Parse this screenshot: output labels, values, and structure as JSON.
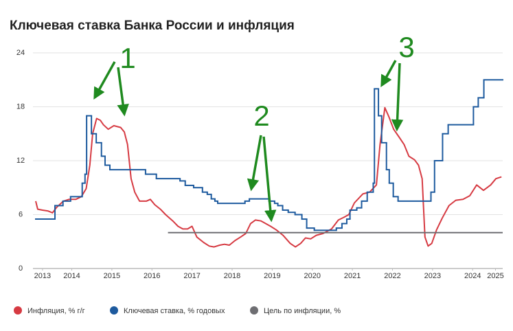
{
  "chart_data": {
    "type": "line",
    "title": "Ключевая ставка Банка России и инфляция",
    "xlim": [
      2013.55,
      2025.2
    ],
    "xticks": [
      {
        "value": 2013.72,
        "label": "2013"
      },
      {
        "value": 2014.45,
        "label": "2014"
      },
      {
        "value": 2015.45,
        "label": "2015"
      },
      {
        "value": 2016.45,
        "label": "2016"
      },
      {
        "value": 2017.45,
        "label": "2017"
      },
      {
        "value": 2018.45,
        "label": "2018"
      },
      {
        "value": 2019.45,
        "label": "2019"
      },
      {
        "value": 2020.45,
        "label": "2020"
      },
      {
        "value": 2021.45,
        "label": "2021"
      },
      {
        "value": 2022.45,
        "label": "2022"
      },
      {
        "value": 2023.45,
        "label": "2023"
      },
      {
        "value": 2024.45,
        "label": "2024"
      },
      {
        "value": 2025.02,
        "label": "2025"
      }
    ],
    "ylim": [
      0,
      24
    ],
    "yticks": [
      0,
      6,
      12,
      18,
      24
    ],
    "grid": true,
    "annotations": [
      "1",
      "2",
      "3"
    ],
    "series": [
      {
        "name": "Инфляция, % г/г",
        "color": "#d63a42",
        "x": [
          2013.55,
          2013.6,
          2013.72,
          2013.86,
          2013.97,
          2014.07,
          2014.24,
          2014.38,
          2014.55,
          2014.69,
          2014.81,
          2014.9,
          2014.97,
          2015.07,
          2015.16,
          2015.24,
          2015.36,
          2015.5,
          2015.67,
          2015.76,
          2015.84,
          2015.93,
          2016.02,
          2016.14,
          2016.31,
          2016.41,
          2016.52,
          2016.66,
          2016.79,
          2016.97,
          2017.1,
          2017.22,
          2017.34,
          2017.45,
          2017.57,
          2017.74,
          2017.88,
          2018.0,
          2018.14,
          2018.26,
          2018.38,
          2018.52,
          2018.66,
          2018.79,
          2018.91,
          2019.03,
          2019.17,
          2019.29,
          2019.41,
          2019.55,
          2019.72,
          2019.9,
          2020.03,
          2020.16,
          2020.28,
          2020.41,
          2020.55,
          2020.72,
          2020.93,
          2021.1,
          2021.24,
          2021.36,
          2021.5,
          2021.71,
          2021.88,
          2022.05,
          2022.14,
          2022.26,
          2022.36,
          2022.48,
          2022.62,
          2022.74,
          2022.86,
          2023.0,
          2023.1,
          2023.19,
          2023.26,
          2023.34,
          2023.43,
          2023.55,
          2023.69,
          2023.86,
          2024.03,
          2024.21,
          2024.38,
          2024.55,
          2024.72,
          2024.9,
          2025.03,
          2025.17
        ],
        "values": [
          7.5,
          6.6,
          6.5,
          6.4,
          6.2,
          6.8,
          7.5,
          7.7,
          7.7,
          8.0,
          8.9,
          11.5,
          15.0,
          16.7,
          16.5,
          16.0,
          15.5,
          15.9,
          15.7,
          15.2,
          13.8,
          10.0,
          8.5,
          7.5,
          7.5,
          7.7,
          7.1,
          6.6,
          6.0,
          5.3,
          4.7,
          4.4,
          4.4,
          4.7,
          3.5,
          2.9,
          2.5,
          2.4,
          2.6,
          2.7,
          2.6,
          3.1,
          3.5,
          3.9,
          5.0,
          5.4,
          5.3,
          5.0,
          4.7,
          4.3,
          3.7,
          2.8,
          2.4,
          2.8,
          3.4,
          3.3,
          3.7,
          3.9,
          4.4,
          5.4,
          5.7,
          6.0,
          7.3,
          8.3,
          8.5,
          9.3,
          13.8,
          17.9,
          16.9,
          15.5,
          14.6,
          13.8,
          12.5,
          12.1,
          11.5,
          10.0,
          3.5,
          2.5,
          2.8,
          4.3,
          5.6,
          7.0,
          7.6,
          7.7,
          8.1,
          9.3,
          8.7,
          9.3,
          10.0,
          10.2
        ]
      },
      {
        "name": "Ключевая ставка, % годовых",
        "color": "#1d5a9e",
        "step": true,
        "x": [
          2013.55,
          2014.03,
          2014.23,
          2014.42,
          2014.71,
          2014.78,
          2014.82,
          2014.94,
          2015.06,
          2015.19,
          2015.28,
          2015.4,
          2016.29,
          2016.56,
          2017.15,
          2017.28,
          2017.49,
          2017.71,
          2017.83,
          2017.93,
          2018.02,
          2018.09,
          2018.77,
          2018.88,
          2019.37,
          2019.51,
          2019.59,
          2019.71,
          2019.85,
          2020.02,
          2020.19,
          2020.31,
          2020.5,
          2021.05,
          2021.19,
          2021.31,
          2021.39,
          2021.56,
          2021.68,
          2021.82,
          2021.97,
          2022.0,
          2022.1,
          2022.18,
          2022.3,
          2022.37,
          2022.47,
          2022.59,
          2023.41,
          2023.5,
          2023.7,
          2023.84,
          2024.47,
          2024.59,
          2024.73,
          2025.2
        ],
        "values": [
          5.5,
          7.0,
          7.5,
          8.0,
          9.5,
          10.5,
          17.0,
          15.0,
          14.0,
          12.5,
          11.5,
          11.0,
          10.5,
          10.0,
          9.75,
          9.25,
          9.0,
          8.5,
          8.25,
          7.75,
          7.5,
          7.25,
          7.5,
          7.75,
          7.5,
          7.25,
          7.0,
          6.5,
          6.25,
          6.0,
          5.5,
          4.5,
          4.25,
          4.5,
          5.0,
          5.5,
          6.5,
          6.75,
          7.5,
          8.5,
          9.5,
          20.0,
          17.0,
          14.0,
          11.0,
          9.5,
          8.0,
          7.5,
          8.5,
          12.0,
          15.0,
          16.0,
          18.0,
          19.0,
          21.0,
          21.0
        ]
      },
      {
        "name": "Цель по инфляции, %",
        "color": "#6e6e72",
        "x": [
          2016.85,
          2025.2
        ],
        "values": [
          4,
          4
        ]
      }
    ]
  }
}
